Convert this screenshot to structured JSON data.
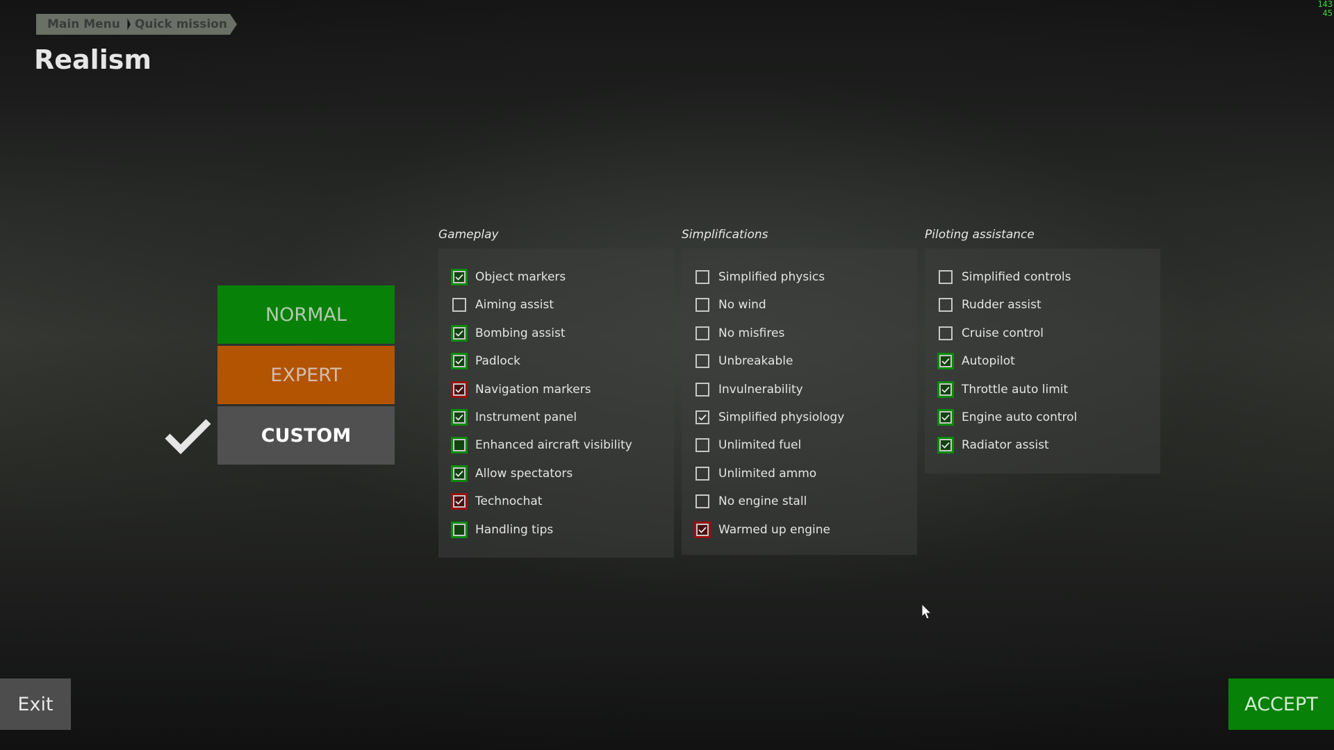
{
  "breadcrumb": [
    "Main Menu",
    "Quick mission"
  ],
  "page_title": "Realism",
  "fps_counter": [
    "143",
    "45"
  ],
  "presets": {
    "normal": "NORMAL",
    "expert": "EXPERT",
    "custom": "CUSTOM",
    "selected": "custom"
  },
  "colors": {
    "green": "#078107",
    "orange": "#b35403",
    "gray": "#505050",
    "red": "#9a1010"
  },
  "columns": [
    {
      "title": "Gameplay",
      "items": [
        {
          "label": "Object markers",
          "checked": true,
          "highlight": "green"
        },
        {
          "label": "Aiming assist",
          "checked": false,
          "highlight": "none"
        },
        {
          "label": "Bombing assist",
          "checked": true,
          "highlight": "green"
        },
        {
          "label": "Padlock",
          "checked": true,
          "highlight": "green"
        },
        {
          "label": "Navigation markers",
          "checked": true,
          "highlight": "red"
        },
        {
          "label": "Instrument panel",
          "checked": true,
          "highlight": "green"
        },
        {
          "label": "Enhanced aircraft visibility",
          "checked": false,
          "highlight": "green"
        },
        {
          "label": "Allow spectators",
          "checked": true,
          "highlight": "green"
        },
        {
          "label": "Technochat",
          "checked": true,
          "highlight": "red"
        },
        {
          "label": "Handling tips",
          "checked": false,
          "highlight": "green"
        }
      ]
    },
    {
      "title": "Simplifications",
      "items": [
        {
          "label": "Simplified physics",
          "checked": false,
          "highlight": "none"
        },
        {
          "label": "No wind",
          "checked": false,
          "highlight": "none"
        },
        {
          "label": "No misfires",
          "checked": false,
          "highlight": "none"
        },
        {
          "label": "Unbreakable",
          "checked": false,
          "highlight": "none"
        },
        {
          "label": "Invulnerability",
          "checked": false,
          "highlight": "none"
        },
        {
          "label": "Simplified physiology",
          "checked": true,
          "highlight": "none"
        },
        {
          "label": "Unlimited fuel",
          "checked": false,
          "highlight": "none"
        },
        {
          "label": "Unlimited ammo",
          "checked": false,
          "highlight": "none"
        },
        {
          "label": "No engine stall",
          "checked": false,
          "highlight": "none"
        },
        {
          "label": "Warmed up engine",
          "checked": true,
          "highlight": "red"
        }
      ]
    },
    {
      "title": "Piloting assistance",
      "items": [
        {
          "label": "Simplified controls",
          "checked": false,
          "highlight": "none"
        },
        {
          "label": "Rudder assist",
          "checked": false,
          "highlight": "none"
        },
        {
          "label": "Cruise control",
          "checked": false,
          "highlight": "none"
        },
        {
          "label": "Autopilot",
          "checked": true,
          "highlight": "green"
        },
        {
          "label": "Throttle auto limit",
          "checked": true,
          "highlight": "green"
        },
        {
          "label": "Engine auto control",
          "checked": true,
          "highlight": "green"
        },
        {
          "label": "Radiator assist",
          "checked": true,
          "highlight": "green"
        }
      ]
    }
  ],
  "footer": {
    "exit": "Exit",
    "accept": "ACCEPT"
  }
}
